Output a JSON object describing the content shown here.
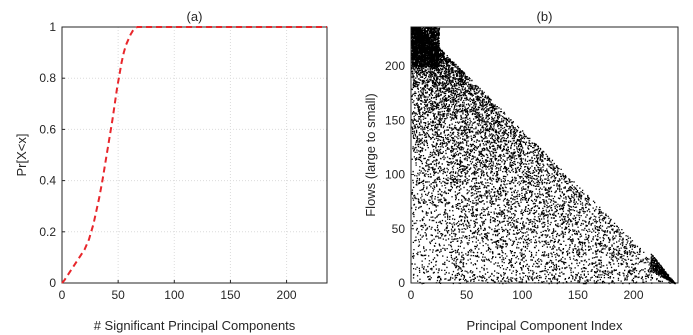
{
  "chart_data": [
    {
      "type": "line",
      "title": "(a)",
      "xlabel": "# Significant Principal Components",
      "ylabel": "Pr[X<x]",
      "xlim": [
        0,
        236
      ],
      "ylim": [
        0,
        1
      ],
      "xticks": [
        "0",
        "50",
        "100",
        "150",
        "200"
      ],
      "yticks": [
        "0",
        "0.2",
        "0.4",
        "0.6",
        "0.8",
        "1"
      ],
      "grid": true,
      "line_color": "#e8262b",
      "line_style": "dashed",
      "series": [
        {
          "x": [
            0,
            2,
            5,
            8,
            11,
            14,
            17,
            20,
            22,
            24,
            26,
            28,
            30,
            33,
            36,
            39,
            42,
            45,
            47,
            49,
            51,
            53,
            55,
            57,
            59,
            61,
            63,
            65,
            67,
            70,
            80,
            100,
            150,
            200,
            236
          ],
          "y": [
            0,
            0.01,
            0.03,
            0.05,
            0.07,
            0.09,
            0.11,
            0.13,
            0.15,
            0.17,
            0.2,
            0.23,
            0.27,
            0.33,
            0.4,
            0.48,
            0.56,
            0.64,
            0.7,
            0.76,
            0.81,
            0.86,
            0.9,
            0.93,
            0.95,
            0.97,
            0.985,
            0.995,
            1.0,
            1.0,
            1.0,
            1.0,
            1.0,
            1.0,
            1.0
          ]
        }
      ]
    },
    {
      "type": "scatter",
      "title": "(b)",
      "xlabel": "Principal Component Index",
      "ylabel": "Flows (large to small)",
      "xlim": [
        0,
        240
      ],
      "ylim": [
        0,
        236
      ],
      "xticks": [
        "0",
        "50",
        "100",
        "150",
        "200"
      ],
      "yticks": [
        "0",
        "50",
        "100",
        "150",
        "200"
      ],
      "grid": false,
      "marker_color": "#000000",
      "description_of_density": "dense band: for flow rank y, points span x from 0 to roughly 236 - y; denser at low x",
      "n_points_estimate": 9000
    }
  ]
}
